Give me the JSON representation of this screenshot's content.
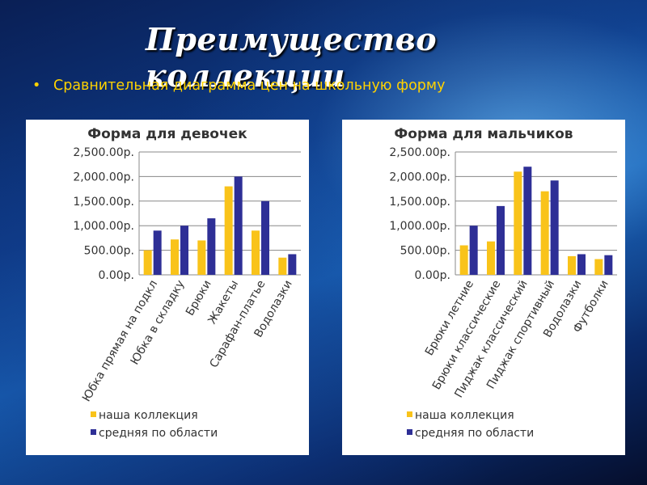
{
  "slide": {
    "title": "Преимущество коллекции",
    "bullet": "Сравнительная диаграмма цен на школьную форму"
  },
  "colors": {
    "ours": "#f9c31a",
    "average": "#2e2f96"
  },
  "chart_data": [
    {
      "type": "bar",
      "title": "Форма для девочек",
      "categories": [
        "Юбка прямая на подкл",
        "Юбка в складку",
        "Брюки",
        "Жакеты",
        "Сарафан-платье",
        "Водолазки"
      ],
      "series": [
        {
          "name": "наша коллекция",
          "values": [
            500,
            720,
            700,
            1800,
            900,
            350
          ]
        },
        {
          "name": "средняя по области",
          "values": [
            900,
            1000,
            1150,
            2000,
            1500,
            420
          ]
        }
      ],
      "yticks": [
        "0.00р.",
        "500.00р.",
        "1,000.00р.",
        "1,500.00р.",
        "2,000.00р.",
        "2,500.00р."
      ],
      "ylim": [
        0,
        2500
      ],
      "legend": "bottom",
      "grid": true
    },
    {
      "type": "bar",
      "title": "Форма для мальчиков",
      "categories": [
        "Брюки летние",
        "Брюки классические",
        "Пиджак классический",
        "Пиджак спортивный",
        "Водолазки",
        "Футболки"
      ],
      "series": [
        {
          "name": "наша коллекция",
          "values": [
            600,
            680,
            2100,
            1700,
            380,
            320
          ]
        },
        {
          "name": "средняя по области",
          "values": [
            1000,
            1400,
            2200,
            1920,
            420,
            400
          ]
        }
      ],
      "yticks": [
        "0.00р.",
        "500.00р.",
        "1,000.00р.",
        "1,500.00р.",
        "2,000.00р.",
        "2,500.00р."
      ],
      "ylim": [
        0,
        2500
      ],
      "legend": "bottom",
      "grid": true
    }
  ]
}
